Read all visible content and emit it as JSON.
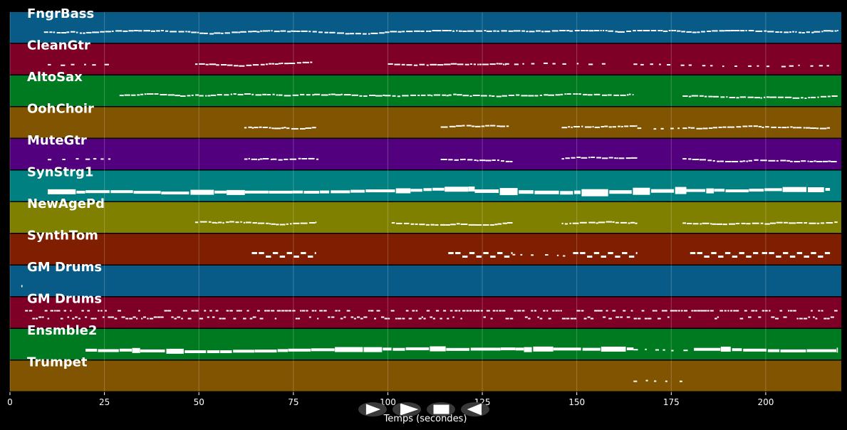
{
  "chart_data": {
    "type": "piano-roll",
    "xlabel": "Temps (secondes)",
    "xlim": [
      0,
      220
    ],
    "xticks": [
      0,
      25,
      50,
      75,
      100,
      125,
      150,
      175,
      200
    ],
    "grid": true,
    "tracks": [
      {
        "name": "FngrBass",
        "color": "#075b86",
        "notes": [
          [
            9,
            219,
            "dense"
          ]
        ]
      },
      {
        "name": "CleanGtr",
        "color": "#7f0027",
        "notes": [
          [
            10,
            28,
            "sparse"
          ],
          [
            49,
            80,
            "dense"
          ],
          [
            100,
            131,
            "dense"
          ],
          [
            131,
            160,
            "sparse"
          ],
          [
            165,
            219,
            "sparse"
          ]
        ]
      },
      {
        "name": "AltoSax",
        "color": "#007a20",
        "notes": [
          [
            29,
            165,
            "dense"
          ],
          [
            178,
            219,
            "dense"
          ]
        ]
      },
      {
        "name": "OohChoir",
        "color": "#805400",
        "notes": [
          [
            62,
            81,
            "dense"
          ],
          [
            114,
            132,
            "dense"
          ],
          [
            146,
            166,
            "dense"
          ],
          [
            166,
            178,
            "sparse"
          ],
          [
            178,
            217,
            "dense"
          ]
        ]
      },
      {
        "name": "MuteGtr",
        "color": "#52007d",
        "notes": [
          [
            10,
            28,
            "sparse"
          ],
          [
            62,
            82,
            "dense"
          ],
          [
            114,
            133,
            "dense"
          ],
          [
            146,
            166,
            "dense"
          ],
          [
            178,
            219,
            "dense"
          ]
        ]
      },
      {
        "name": "SynStrg1",
        "color": "#008080",
        "notes": [
          [
            10,
            123,
            "solid"
          ],
          [
            123,
            179,
            "blocks"
          ],
          [
            179,
            217,
            "solid"
          ]
        ]
      },
      {
        "name": "NewAgePd",
        "color": "#808000",
        "notes": [
          [
            49,
            81,
            "dense"
          ],
          [
            101,
            133,
            "dense"
          ],
          [
            146,
            166,
            "dense"
          ],
          [
            178,
            219,
            "dense"
          ]
        ]
      },
      {
        "name": "SynthTom",
        "color": "#7f1e00",
        "notes": [
          [
            64,
            81,
            "dash"
          ],
          [
            116,
            133,
            "dash"
          ],
          [
            133,
            148,
            "sparse"
          ],
          [
            149,
            166,
            "dash"
          ],
          [
            180,
            198,
            "dash"
          ],
          [
            199,
            217,
            "dash"
          ]
        ]
      },
      {
        "name": "GM Drums",
        "color": "#075b86",
        "notes": [
          [
            3,
            4,
            "dot"
          ]
        ]
      },
      {
        "name": "GM Drums",
        "color": "#7f0027",
        "notes": [
          [
            4,
            219,
            "drums"
          ]
        ]
      },
      {
        "name": "Ensmble2",
        "color": "#007a20",
        "notes": [
          [
            20,
            165,
            "solid"
          ],
          [
            165,
            181,
            "sparse"
          ],
          [
            181,
            219,
            "solid"
          ]
        ]
      },
      {
        "name": "Trumpet",
        "color": "#805400",
        "notes": [
          [
            165,
            178,
            "sparse"
          ]
        ]
      }
    ]
  },
  "controls": {
    "play_forward": "play-forward",
    "fast_forward": "fast-forward",
    "stop": "stop",
    "play_backward": "play-backward"
  }
}
